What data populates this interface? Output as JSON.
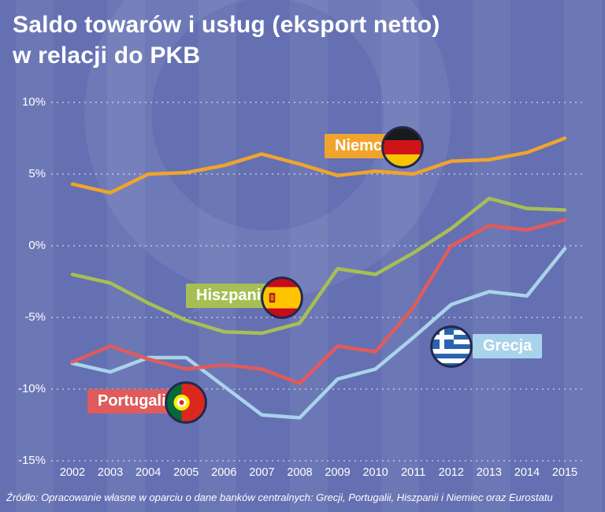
{
  "title": "Saldo towarów i usług (eksport netto)\nw relacji do PKB",
  "source": "Źródło: Opracowanie własne w oparciu o dane banków centralnych: Grecji, Portugalii, Hiszpanii i Niemiec oraz Eurostatu",
  "colors": {
    "background": "#6470b2",
    "stripe_overlay": "rgba(255,255,255,0.05)",
    "grid": "rgba(255,255,255,0.7)",
    "text": "#ffffff",
    "niemcy": "#f0a42c",
    "hiszpania": "#a6bf55",
    "portugalia": "#e05b5b",
    "grecja": "#a9d3ea"
  },
  "chart_data": {
    "type": "line",
    "title": "Saldo towarów i usług (eksport netto) w relacji do PKB",
    "x": [
      2002,
      2003,
      2004,
      2005,
      2006,
      2007,
      2008,
      2009,
      2010,
      2011,
      2012,
      2013,
      2014,
      2015
    ],
    "series": [
      {
        "name": "Niemcy",
        "color": "#f0a42c",
        "values": [
          4.3,
          3.7,
          5.0,
          5.1,
          5.6,
          6.4,
          5.7,
          4.9,
          5.2,
          5.0,
          5.9,
          6.0,
          6.5,
          7.5
        ]
      },
      {
        "name": "Hiszpania",
        "color": "#a6bf55",
        "values": [
          -2.0,
          -2.6,
          -4.0,
          -5.2,
          -6.0,
          -6.1,
          -5.4,
          -1.6,
          -2.0,
          -0.5,
          1.2,
          3.3,
          2.6,
          2.5
        ]
      },
      {
        "name": "Portugalia",
        "color": "#e05b5b",
        "values": [
          -8.1,
          -7.0,
          -7.9,
          -8.6,
          -8.3,
          -8.6,
          -9.6,
          -7.0,
          -7.4,
          -4.3,
          0.0,
          1.4,
          1.1,
          1.8
        ]
      },
      {
        "name": "Grecja",
        "color": "#a9d3ea",
        "values": [
          -8.2,
          -8.8,
          -7.8,
          -7.8,
          -9.8,
          -11.8,
          -12.0,
          -9.3,
          -8.6,
          -6.4,
          -4.1,
          -3.2,
          -3.5,
          -0.2
        ]
      }
    ],
    "ylim": [
      -15,
      10
    ],
    "yticks": [
      10,
      5,
      0,
      -5,
      -10,
      -15
    ],
    "ytick_labels": [
      "10%",
      "5%",
      "0%",
      "-5%",
      "-10%",
      "-15%"
    ],
    "grid": "horizontal dashed",
    "legend": "inline labels with circular flag icons"
  }
}
